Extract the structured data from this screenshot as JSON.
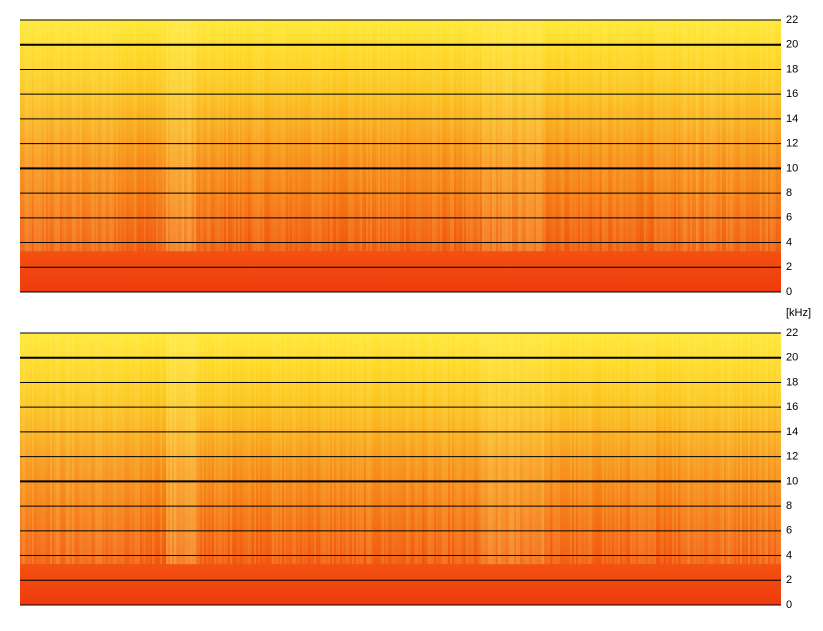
{
  "chart_data": [
    {
      "type": "spectrogram",
      "y_label": "[kHz]",
      "ylim": [
        0,
        22
      ],
      "yticks": [
        0,
        2,
        4,
        6,
        8,
        10,
        12,
        14,
        16,
        18,
        20,
        22
      ],
      "major_gridlines": [
        10,
        20
      ],
      "grid": true
    },
    {
      "type": "spectrogram",
      "ylim": [
        0,
        22
      ],
      "yticks": [
        0,
        2,
        4,
        6,
        8,
        10,
        12,
        14,
        16,
        18,
        20,
        22
      ],
      "major_gridlines": [
        10,
        20
      ],
      "grid": true
    }
  ]
}
